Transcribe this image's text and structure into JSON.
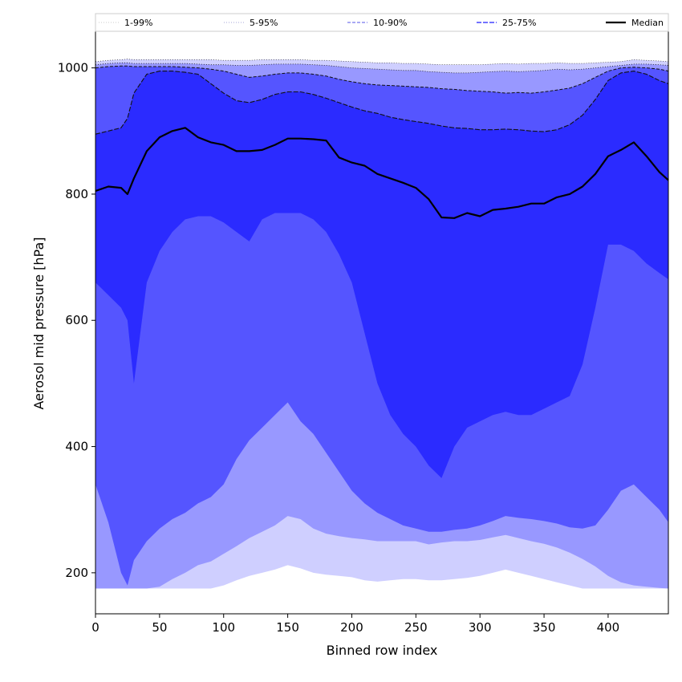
{
  "chart_data": {
    "type": "area",
    "xlabel": "Binned row index",
    "ylabel": "Aerosol mid pressure [hPa]",
    "xlim": [
      0,
      447
    ],
    "ylim": [
      135,
      1058
    ],
    "xticks": [
      0,
      50,
      100,
      150,
      200,
      250,
      300,
      350,
      400
    ],
    "yticks": [
      200,
      400,
      600,
      800,
      1000
    ],
    "legend_position": "top, single row spanning plot width",
    "legend": [
      "1-99%",
      "5-95%",
      "10-90%",
      "25-75%",
      "Median"
    ],
    "colors": {
      "band_1_99": "#cfcfff",
      "band_5_95": "#9898ff",
      "band_10_90": "#5555ff",
      "band_25_75": "#2b2bff",
      "median": "#000000"
    },
    "x": [
      0,
      10,
      20,
      25,
      30,
      40,
      50,
      60,
      70,
      80,
      90,
      100,
      110,
      120,
      130,
      140,
      150,
      160,
      170,
      180,
      190,
      200,
      210,
      220,
      230,
      240,
      250,
      260,
      270,
      280,
      290,
      300,
      310,
      320,
      330,
      340,
      350,
      360,
      370,
      380,
      390,
      400,
      410,
      420,
      430,
      440,
      447
    ],
    "series": [
      {
        "name": "1-99%",
        "upper": [
          1010,
          1012,
          1013,
          1014,
          1013,
          1013,
          1013,
          1013,
          1013,
          1013,
          1013,
          1012,
          1012,
          1012,
          1013,
          1013,
          1013,
          1013,
          1012,
          1012,
          1011,
          1010,
          1009,
          1008,
          1008,
          1007,
          1007,
          1006,
          1005,
          1005,
          1005,
          1005,
          1006,
          1007,
          1006,
          1007,
          1007,
          1008,
          1007,
          1007,
          1008,
          1009,
          1010,
          1013,
          1012,
          1011,
          1010
        ],
        "lower": [
          175,
          175,
          175,
          175,
          175,
          175,
          175,
          175,
          175,
          175,
          175,
          180,
          188,
          195,
          200,
          205,
          212,
          207,
          200,
          197,
          195,
          193,
          188,
          186,
          188,
          190,
          190,
          188,
          188,
          190,
          192,
          195,
          200,
          205,
          200,
          195,
          190,
          185,
          180,
          175,
          175,
          175,
          175,
          175,
          175,
          175,
          175
        ]
      },
      {
        "name": "5-95%",
        "upper": [
          1005,
          1007,
          1008,
          1008,
          1007,
          1007,
          1007,
          1007,
          1007,
          1006,
          1005,
          1005,
          1004,
          1004,
          1005,
          1006,
          1006,
          1006,
          1005,
          1004,
          1002,
          1000,
          999,
          998,
          997,
          996,
          996,
          994,
          993,
          992,
          992,
          993,
          994,
          995,
          994,
          995,
          996,
          998,
          997,
          998,
          1000,
          1002,
          1004,
          1006,
          1006,
          1005,
          1004
        ],
        "lower": [
          175,
          175,
          175,
          175,
          175,
          175,
          178,
          190,
          200,
          212,
          218,
          230,
          242,
          255,
          265,
          275,
          290,
          285,
          270,
          262,
          258,
          255,
          253,
          250,
          250,
          250,
          250,
          245,
          248,
          250,
          250,
          252,
          256,
          260,
          255,
          250,
          246,
          240,
          232,
          222,
          210,
          195,
          185,
          180,
          178,
          176,
          175
        ]
      },
      {
        "name": "10-90%",
        "upper": [
          1000,
          1002,
          1003,
          1003,
          1002,
          1002,
          1002,
          1002,
          1001,
          1000,
          998,
          995,
          990,
          985,
          987,
          990,
          992,
          992,
          990,
          987,
          982,
          978,
          975,
          973,
          972,
          971,
          970,
          969,
          967,
          966,
          964,
          963,
          962,
          960,
          961,
          960,
          962,
          965,
          968,
          975,
          985,
          995,
          1000,
          1001,
          1000,
          998,
          995
        ],
        "lower": [
          340,
          280,
          200,
          180,
          220,
          250,
          270,
          285,
          295,
          310,
          320,
          340,
          380,
          410,
          430,
          450,
          470,
          440,
          420,
          390,
          360,
          330,
          310,
          295,
          285,
          275,
          270,
          265,
          265,
          268,
          270,
          275,
          282,
          290,
          287,
          285,
          282,
          278,
          272,
          270,
          275,
          300,
          330,
          340,
          320,
          300,
          280
        ]
      },
      {
        "name": "25-75%",
        "upper": [
          895,
          900,
          905,
          920,
          960,
          990,
          995,
          995,
          993,
          990,
          975,
          960,
          948,
          945,
          950,
          958,
          962,
          962,
          958,
          952,
          945,
          938,
          932,
          928,
          922,
          918,
          915,
          912,
          908,
          905,
          904,
          902,
          902,
          903,
          902,
          900,
          899,
          902,
          910,
          925,
          950,
          980,
          992,
          995,
          990,
          980,
          975
        ],
        "lower": [
          660,
          640,
          620,
          600,
          500,
          660,
          710,
          740,
          760,
          765,
          765,
          755,
          740,
          725,
          760,
          770,
          770,
          770,
          760,
          740,
          705,
          660,
          580,
          500,
          450,
          420,
          400,
          370,
          350,
          400,
          430,
          440,
          450,
          455,
          450,
          450,
          460,
          470,
          480,
          530,
          620,
          720,
          720,
          710,
          690,
          675,
          665
        ]
      },
      {
        "name": "Median",
        "values": [
          805,
          812,
          810,
          800,
          825,
          868,
          890,
          900,
          905,
          890,
          882,
          878,
          868,
          868,
          870,
          878,
          888,
          888,
          887,
          885,
          858,
          850,
          845,
          832,
          825,
          818,
          810,
          792,
          763,
          762,
          770,
          765,
          775,
          777,
          780,
          785,
          785,
          795,
          800,
          812,
          832,
          860,
          870,
          882,
          860,
          835,
          822
        ]
      }
    ]
  }
}
